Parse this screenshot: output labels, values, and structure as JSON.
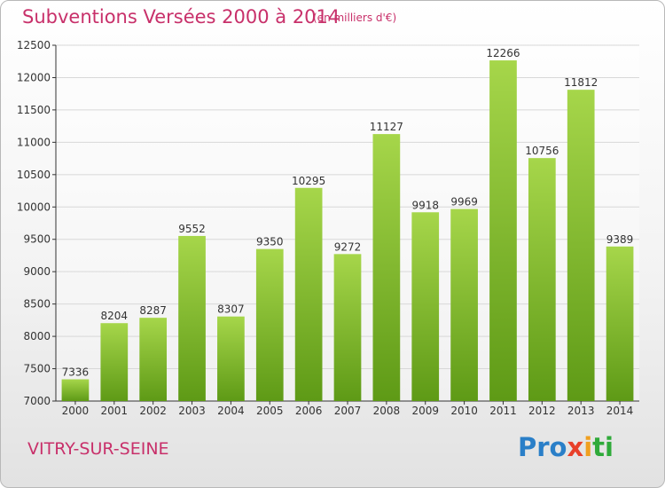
{
  "header": {
    "title": "Subventions Versées 2000 à 2014",
    "unit_note": "(en milliers d'€)"
  },
  "footer": {
    "place": "VITRY-SUR-SEINE",
    "logo_text": "Proxiti",
    "logo_parts": [
      "Pro",
      "x",
      "i",
      "ti"
    ]
  },
  "colors": {
    "title": "#c8306a",
    "bar_light": "#a6d64a",
    "bar_dark": "#5e9a16",
    "grid": "#d8d8d8"
  },
  "chart_data": {
    "type": "bar",
    "title": "Subventions Versées 2000 à 2014",
    "subtitle": "(en milliers d'€)",
    "xlabel": "",
    "ylabel": "",
    "categories": [
      "2000",
      "2001",
      "2002",
      "2003",
      "2004",
      "2005",
      "2006",
      "2007",
      "2008",
      "2009",
      "2010",
      "2011",
      "2012",
      "2013",
      "2014"
    ],
    "values": [
      7336,
      8204,
      8287,
      9552,
      8307,
      9350,
      10295,
      9272,
      11127,
      9918,
      9969,
      12266,
      10756,
      11812,
      9389
    ],
    "ylim": [
      7000,
      12500
    ],
    "yticks": [
      7000,
      7500,
      8000,
      8500,
      9000,
      9500,
      10000,
      10500,
      11000,
      11500,
      12000,
      12500
    ],
    "grid": true,
    "legend": "none"
  }
}
